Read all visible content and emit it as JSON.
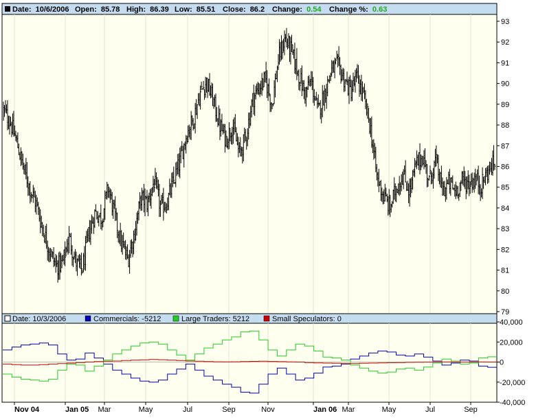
{
  "header": {
    "date_label": "Date:",
    "date_value": "10/6/2006",
    "open_label": "Open:",
    "open_value": "85.78",
    "high_label": "High:",
    "high_value": "86.39",
    "low_label": "Low:",
    "low_value": "85.51",
    "close_label": "Close:",
    "close_value": "86.2",
    "change_label": "Change:",
    "change_value": "0.54",
    "changepct_label": "Change %:",
    "changepct_value": "0.63"
  },
  "lower_header": {
    "date_text": "Date: 10/3/2006",
    "commercials_text": "Commercials: -5212",
    "large_text": "Large Traders: 5212",
    "small_text": "Small Speculators: 0"
  },
  "colors": {
    "plot_bg": "#fffff0",
    "header_bg": "#c5dcf0",
    "price": "#000000",
    "commercials": "#0000b0",
    "large_traders": "#22cc22",
    "small_speculators": "#cc0000",
    "positive": "#1faa1f"
  },
  "chart_data": [
    {
      "type": "ohlc",
      "ylim": [
        79,
        93
      ],
      "yticks": [
        79,
        80,
        81,
        82,
        83,
        84,
        85,
        86,
        87,
        88,
        89,
        90,
        91,
        92,
        93
      ],
      "x_labels": [
        {
          "label": "Nov 04",
          "bold": true
        },
        {
          "label": "Jan 05",
          "bold": true
        },
        {
          "label": "Mar",
          "bold": false
        },
        {
          "label": "May",
          "bold": false
        },
        {
          "label": "Jul",
          "bold": false
        },
        {
          "label": "Sep",
          "bold": false
        },
        {
          "label": "Nov",
          "bold": false
        },
        {
          "label": "Jan 06",
          "bold": true
        },
        {
          "label": "Mar",
          "bold": false
        },
        {
          "label": "May",
          "bold": false
        },
        {
          "label": "Jul",
          "bold": false
        },
        {
          "label": "Sep",
          "bold": false
        }
      ],
      "price_path": [
        88.7,
        88.2,
        87.2,
        86.0,
        85.0,
        84.2,
        83.0,
        82.0,
        81.2,
        81.3,
        82.6,
        81.4,
        81.0,
        82.7,
        83.8,
        83.5,
        85.0,
        83.6,
        82.3,
        81.5,
        82.8,
        84.5,
        84.2,
        85.3,
        84.0,
        84.3,
        85.3,
        86.3,
        87.6,
        88.3,
        89.5,
        90.1,
        89.2,
        88.0,
        87.3,
        88.0,
        86.6,
        87.4,
        89.2,
        89.8,
        90.2,
        89.0,
        91.2,
        92.2,
        91.5,
        90.5,
        89.5,
        90.1,
        88.6,
        89.5,
        90.6,
        90.9,
        90.2,
        89.6,
        90.3,
        89.3,
        87.9,
        85.5,
        84.6,
        84.0,
        85.0,
        85.6,
        84.8,
        86.1,
        86.5,
        85.3,
        86.3,
        84.8,
        85.2,
        84.8,
        85.3,
        85.2,
        85.4,
        85.1,
        85.8,
        86.2
      ]
    },
    {
      "type": "line",
      "ylim": [
        -40000,
        40000
      ],
      "yticks": [
        40000,
        20000,
        0,
        -20000,
        -40000
      ],
      "ytick_labels": [
        "40,000",
        "20,000",
        "0",
        "-20,000",
        "-40,000"
      ],
      "series": [
        {
          "name": "Commercials",
          "values": [
            12000,
            15000,
            17000,
            18000,
            19000,
            17000,
            8000,
            2000,
            3000,
            9000,
            4000,
            -2000,
            -8000,
            -12000,
            -16000,
            -19000,
            -20000,
            -18000,
            -12000,
            -7000,
            -2000,
            -8000,
            -14000,
            -18000,
            -22000,
            -25000,
            -30000,
            -31000,
            -22000,
            -12000,
            -6000,
            -12000,
            -18000,
            -16000,
            -11000,
            -5000,
            -4000,
            -2000,
            3000,
            6000,
            9000,
            11000,
            10000,
            7000,
            6000,
            8000,
            5000,
            1000,
            -3000,
            -1000,
            2000,
            1000,
            -4000,
            -5212
          ]
        },
        {
          "name": "Large Traders",
          "values": [
            -12000,
            -15000,
            -17000,
            -18000,
            -19000,
            -17000,
            -8000,
            -2000,
            -3000,
            -9000,
            -4000,
            2000,
            8000,
            12000,
            16000,
            19000,
            20000,
            18000,
            12000,
            7000,
            2000,
            8000,
            14000,
            18000,
            22000,
            25000,
            30000,
            31000,
            22000,
            12000,
            6000,
            12000,
            18000,
            16000,
            11000,
            5000,
            4000,
            2000,
            -3000,
            -6000,
            -9000,
            -11000,
            -10000,
            -7000,
            -6000,
            -8000,
            -5000,
            -1000,
            3000,
            1000,
            -2000,
            -1000,
            4000,
            5212
          ]
        },
        {
          "name": "Small Speculators",
          "values": [
            -2000,
            -2500,
            -3000,
            -3000,
            -2500,
            -2000,
            -1500,
            -1000,
            -500,
            0,
            500,
            800,
            1000,
            1500,
            2000,
            2200,
            2500,
            2300,
            2000,
            1500,
            1000,
            800,
            500,
            300,
            200,
            300,
            500,
            700,
            800,
            600,
            400,
            200,
            0,
            -500,
            -800,
            -1000,
            -1200,
            -1500,
            -1500,
            -1200,
            -1000,
            -800,
            -600,
            -500,
            -300,
            -200,
            -100,
            0,
            100,
            0,
            -100,
            0,
            100,
            0
          ]
        }
      ]
    }
  ]
}
